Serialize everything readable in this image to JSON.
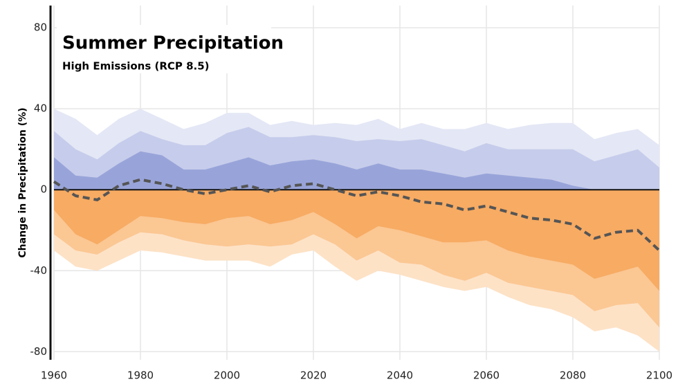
{
  "chart_data": {
    "type": "band-area",
    "title": "Summer Precipitation",
    "subtitle": "High Emissions (RCP 8.5)",
    "y_label": "Change in Precipitation (%)",
    "x": [
      1960,
      1965,
      1970,
      1975,
      1980,
      1985,
      1990,
      1995,
      2000,
      2005,
      2010,
      2015,
      2020,
      2025,
      2030,
      2035,
      2040,
      2045,
      2050,
      2055,
      2060,
      2065,
      2070,
      2075,
      2080,
      2085,
      2090,
      2095,
      2100
    ],
    "series": [
      {
        "color": "#e4e7f5",
        "values": [
          40,
          35,
          27,
          35,
          40,
          35,
          30,
          33,
          38,
          38,
          32,
          34,
          32,
          33,
          32,
          35,
          30,
          33,
          30,
          30,
          33,
          30,
          32,
          33,
          33,
          25,
          28,
          30,
          22
        ]
      },
      {
        "color": "#c6cceb",
        "values": [
          29,
          20,
          15,
          23,
          29,
          25,
          22,
          22,
          28,
          31,
          26,
          26,
          27,
          26,
          24,
          25,
          24,
          25,
          22,
          19,
          23,
          20,
          20,
          20,
          20,
          14,
          17,
          20,
          11
        ]
      },
      {
        "color": "#98a4d9",
        "values": [
          16,
          7,
          6,
          13,
          19,
          17,
          10,
          10,
          13,
          16,
          12,
          14,
          15,
          13,
          10,
          13,
          10,
          10,
          8,
          6,
          8,
          7,
          6,
          5,
          2,
          0,
          0,
          0,
          0
        ]
      },
      {
        "color": "#fde2c6",
        "values": [
          -30,
          -38,
          -40,
          -35,
          -30,
          -31,
          -33,
          -35,
          -35,
          -35,
          -38,
          -32,
          -30,
          -38,
          -45,
          -40,
          -42,
          -45,
          -48,
          -50,
          -48,
          -53,
          -57,
          -59,
          -63,
          -70,
          -68,
          -72,
          -80
        ]
      },
      {
        "color": "#fbc793",
        "values": [
          -22,
          -30,
          -32,
          -26,
          -21,
          -22,
          -25,
          -27,
          -28,
          -27,
          -28,
          -27,
          -22,
          -27,
          -35,
          -30,
          -36,
          -37,
          -42,
          -45,
          -41,
          -46,
          -48,
          -50,
          -52,
          -60,
          -57,
          -56,
          -68
        ]
      },
      {
        "color": "#f7ab63",
        "values": [
          -10,
          -22,
          -27,
          -20,
          -13,
          -14,
          -16,
          -17,
          -14,
          -13,
          -17,
          -15,
          -11,
          -17,
          -24,
          -18,
          -20,
          -23,
          -26,
          -26,
          -25,
          -30,
          -33,
          -35,
          -37,
          -44,
          -41,
          -38,
          -50
        ]
      },
      {
        "color": "#555555",
        "style": "dashed-line",
        "values": [
          4,
          -3,
          -5,
          2,
          5,
          3,
          0,
          -2,
          0,
          2,
          -1,
          2,
          3,
          0,
          -3,
          -1,
          -3,
          -6,
          -7,
          -10,
          -8,
          -11,
          -14,
          -15,
          -17,
          -24,
          -21,
          -20,
          -30
        ]
      }
    ],
    "xlim": [
      1960,
      2100
    ],
    "ylim": [
      -84,
      91
    ],
    "xticks": [
      1960,
      1980,
      2000,
      2020,
      2040,
      2060,
      2080,
      2100
    ],
    "yticks": [
      -80,
      -40,
      0,
      40,
      80
    ],
    "grid": true
  }
}
